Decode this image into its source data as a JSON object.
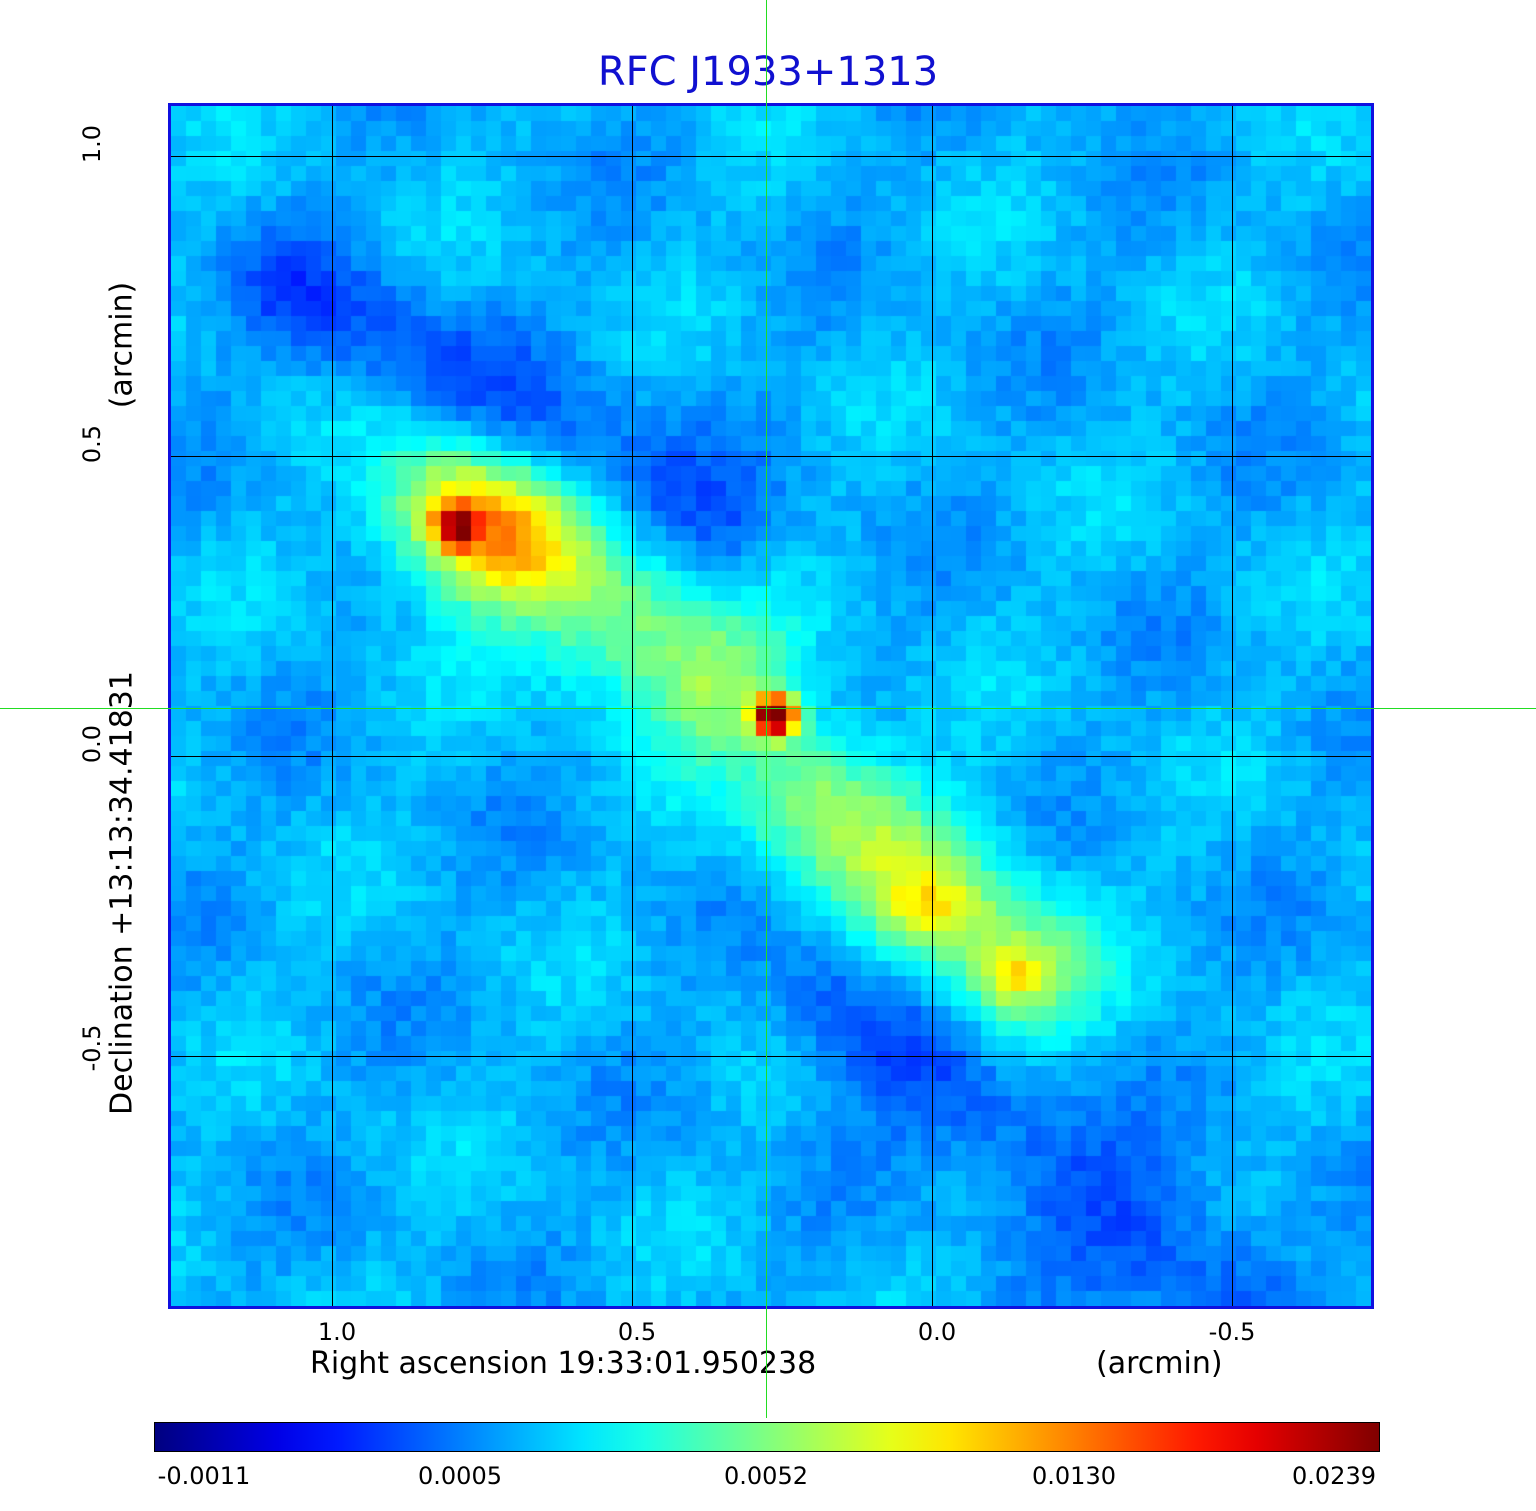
{
  "title": "RFC J1933+1313",
  "x_axis": {
    "label": "Right ascension  19:33:01.950238",
    "unit": "(arcmin)",
    "ticks": [
      "1.0",
      "0.5",
      "0.0",
      "-0.5"
    ],
    "tick_values": [
      1.0,
      0.5,
      0.0,
      -0.5
    ],
    "range": [
      1.27,
      -0.73
    ]
  },
  "y_axis": {
    "label": "Declination  +13:13:34.41831",
    "unit": "(arcmin)",
    "ticks": [
      "1.0",
      "0.5",
      "0.0",
      "-0.5"
    ],
    "tick_values": [
      1.0,
      0.5,
      0.0,
      -0.5
    ],
    "range": [
      -0.92,
      1.08
    ]
  },
  "colorbar": {
    "colormap": "jet",
    "tick_labels": [
      "-0.0011",
      "0.0005",
      "0.0052",
      "0.0130",
      "0.0239"
    ]
  },
  "colors": {
    "title": "#1010d0",
    "frame": "#1010e0",
    "crosshair": "#22dd22",
    "grid": "#000000"
  }
}
